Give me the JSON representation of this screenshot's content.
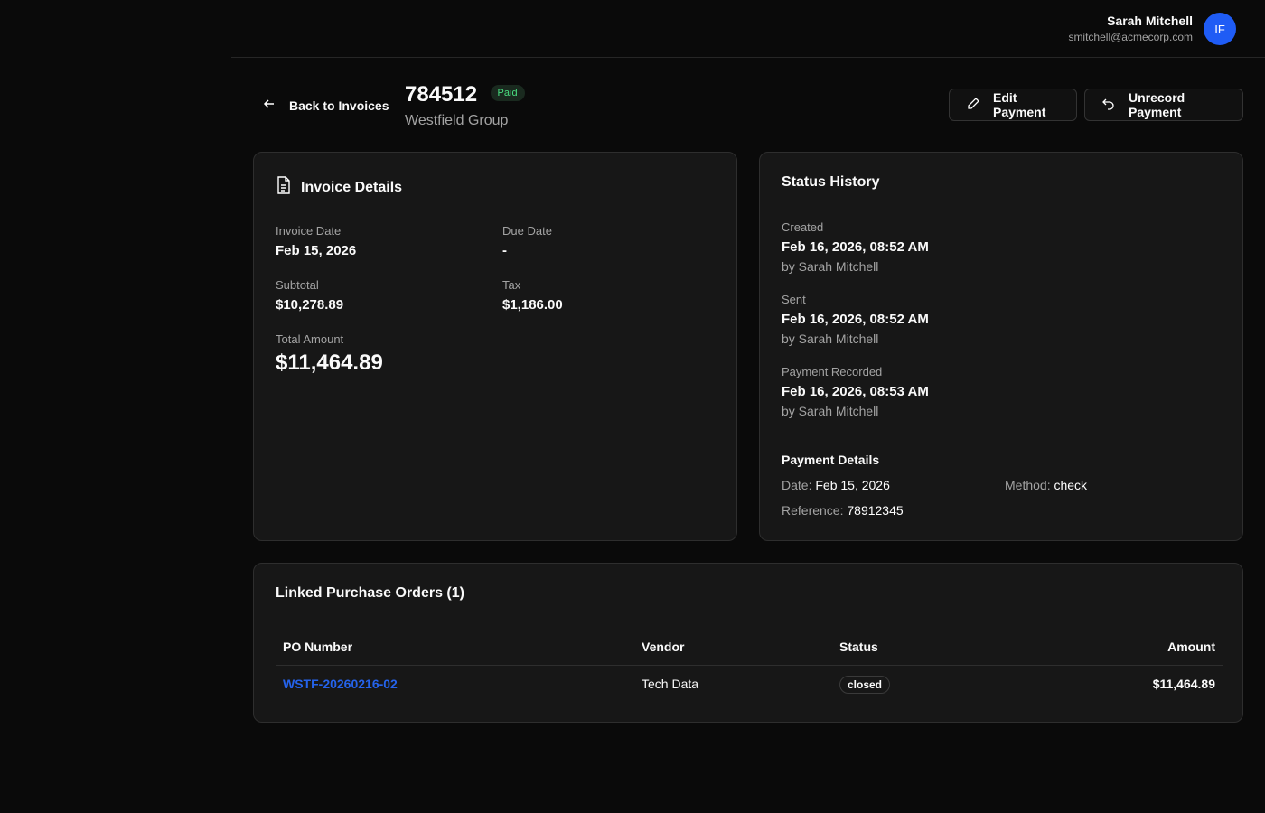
{
  "user": {
    "name": "Sarah Mitchell",
    "email": "smitchell@acmecorp.com",
    "initials": "IF"
  },
  "header": {
    "back_label": "Back to Invoices",
    "invoice_number": "784512",
    "status": "Paid",
    "company": "Westfield Group",
    "edit_label": "Edit Payment",
    "unrecord_label": "Unrecord Payment"
  },
  "details": {
    "title": "Invoice Details",
    "invoice_date_label": "Invoice Date",
    "invoice_date": "Feb 15, 2026",
    "due_date_label": "Due Date",
    "due_date": "-",
    "subtotal_label": "Subtotal",
    "subtotal": "$10,278.89",
    "tax_label": "Tax",
    "tax": "$1,186.00",
    "total_label": "Total Amount",
    "total": "$11,464.89"
  },
  "history": {
    "title": "Status History",
    "events": [
      {
        "label": "Created",
        "time": "Feb 16, 2026, 08:52 AM",
        "by": "by Sarah Mitchell"
      },
      {
        "label": "Sent",
        "time": "Feb 16, 2026, 08:52 AM",
        "by": "by Sarah Mitchell"
      },
      {
        "label": "Payment Recorded",
        "time": "Feb 16, 2026, 08:53 AM",
        "by": "by Sarah Mitchell"
      }
    ],
    "payment": {
      "title": "Payment Details",
      "date_label": "Date:",
      "date": "Feb 15, 2026",
      "method_label": "Method:",
      "method": "check",
      "reference_label": "Reference:",
      "reference": "78912345"
    }
  },
  "po": {
    "title": "Linked Purchase Orders (1)",
    "columns": [
      "PO Number",
      "Vendor",
      "Status",
      "Amount"
    ],
    "rows": [
      {
        "number": "WSTF-20260216-02",
        "vendor": "Tech Data",
        "status": "closed",
        "amount": "$11,464.89"
      }
    ]
  },
  "colors": {
    "accent": "#1f5cf5",
    "paid": "#4ade80",
    "link": "#2563eb"
  }
}
